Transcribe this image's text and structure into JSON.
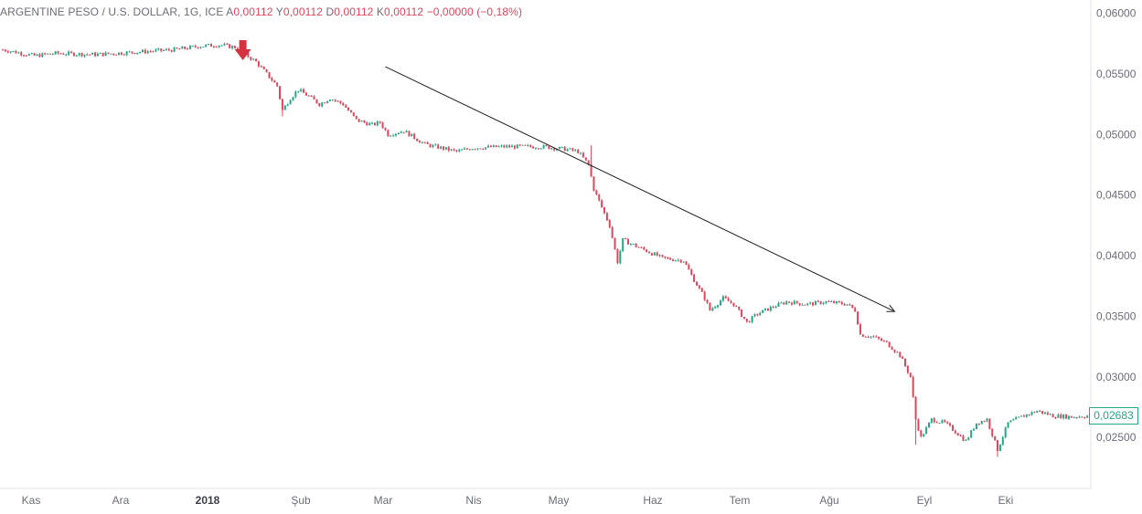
{
  "legend": {
    "symbol": "ARGENTINE PESO / U.S. DOLLAR, 1G, ICE",
    "open_label": "A",
    "open": "0,00112",
    "high_label": "Y",
    "high": "0,00112",
    "low_label": "D",
    "low": "0,00112",
    "close_label": "K",
    "close": "0,00112",
    "change": "−0,00000 (−0,18%)"
  },
  "last_price": "0,02683",
  "colors": {
    "up": "#22a884",
    "down": "#e0455b",
    "marker": "#d3323f",
    "trendline": "#1f1f1f",
    "axis_text": "#6a6d78"
  },
  "chart_data": {
    "type": "candlestick",
    "title": "ARGENTINE PESO / U.S. DOLLAR, 1G, ICE",
    "y_range": [
      0.0208,
      0.0611
    ],
    "y_ticks": [
      "0,06000",
      "0,05500",
      "0,05000",
      "0,04500",
      "0,04000",
      "0,03500",
      "0,03000",
      "0,02500"
    ],
    "y_tick_values": [
      0.06,
      0.055,
      0.05,
      0.045,
      0.04,
      0.035,
      0.03,
      0.025
    ],
    "x_ticks": [
      {
        "label": "Kas",
        "bold": false
      },
      {
        "label": "Ara",
        "bold": false
      },
      {
        "label": "2018",
        "bold": true
      },
      {
        "label": "Şub",
        "bold": false
      },
      {
        "label": "Mar",
        "bold": false
      },
      {
        "label": "Nis",
        "bold": false
      },
      {
        "label": "May",
        "bold": false
      },
      {
        "label": "Haz",
        "bold": false
      },
      {
        "label": "Tem",
        "bold": false
      },
      {
        "label": "Ağu",
        "bold": false
      },
      {
        "label": "Eyl",
        "bold": false
      },
      {
        "label": "Eki",
        "bold": false
      }
    ],
    "path_points": [
      [
        0,
        0.057
      ],
      [
        12,
        0.0565
      ],
      [
        20,
        0.0567
      ],
      [
        35,
        0.0566
      ],
      [
        50,
        0.0568
      ],
      [
        65,
        0.057
      ],
      [
        75,
        0.0573
      ],
      [
        82,
        0.0574
      ],
      [
        88,
        0.0572
      ],
      [
        92,
        0.0566
      ],
      [
        96,
        0.056
      ],
      [
        100,
        0.055
      ],
      [
        104,
        0.054
      ],
      [
        106,
        0.052
      ],
      [
        109,
        0.053
      ],
      [
        112,
        0.0537
      ],
      [
        117,
        0.053
      ],
      [
        120,
        0.0525
      ],
      [
        124,
        0.053
      ],
      [
        129,
        0.0525
      ],
      [
        134,
        0.0512
      ],
      [
        140,
        0.0508
      ],
      [
        143,
        0.051
      ],
      [
        146,
        0.05
      ],
      [
        152,
        0.0503
      ],
      [
        160,
        0.0492
      ],
      [
        168,
        0.0488
      ],
      [
        172,
        0.0486
      ],
      [
        178,
        0.0489
      ],
      [
        190,
        0.049
      ],
      [
        204,
        0.049
      ],
      [
        213,
        0.0488
      ],
      [
        218,
        0.0486
      ],
      [
        222,
        0.0475
      ],
      [
        224,
        0.0455
      ],
      [
        227,
        0.044
      ],
      [
        230,
        0.0425
      ],
      [
        233,
        0.0395
      ],
      [
        235,
        0.0413
      ],
      [
        240,
        0.0408
      ],
      [
        250,
        0.0398
      ],
      [
        258,
        0.0396
      ],
      [
        262,
        0.038
      ],
      [
        266,
        0.0365
      ],
      [
        268,
        0.0355
      ],
      [
        273,
        0.0365
      ],
      [
        277,
        0.036
      ],
      [
        282,
        0.0345
      ],
      [
        286,
        0.0352
      ],
      [
        292,
        0.0358
      ],
      [
        297,
        0.0362
      ],
      [
        305,
        0.036
      ],
      [
        312,
        0.0362
      ],
      [
        320,
        0.036
      ],
      [
        323,
        0.0355
      ],
      [
        325,
        0.0335
      ],
      [
        330,
        0.0333
      ],
      [
        335,
        0.0328
      ],
      [
        340,
        0.0318
      ],
      [
        344,
        0.03
      ],
      [
        346,
        0.0265
      ],
      [
        348,
        0.025
      ],
      [
        352,
        0.0265
      ],
      [
        357,
        0.0262
      ],
      [
        361,
        0.0255
      ],
      [
        365,
        0.0247
      ],
      [
        369,
        0.0262
      ],
      [
        373,
        0.0265
      ],
      [
        377,
        0.024
      ],
      [
        381,
        0.0262
      ],
      [
        387,
        0.0268
      ],
      [
        392,
        0.0272
      ],
      [
        398,
        0.0268
      ],
      [
        405,
        0.0267
      ],
      [
        412,
        0.0268
      ]
    ],
    "spikes": [
      {
        "day": 106,
        "low": 0.0515
      },
      {
        "day": 223,
        "high": 0.0491
      },
      {
        "day": 233,
        "low": 0.0393
      },
      {
        "day": 346,
        "low": 0.0244
      },
      {
        "day": 377,
        "low": 0.0234
      }
    ],
    "annotations": {
      "trendline": {
        "from": [
          145,
          0.0556
        ],
        "to": [
          338,
          0.0354
        ]
      },
      "down_arrow": {
        "day": 91
      }
    }
  }
}
